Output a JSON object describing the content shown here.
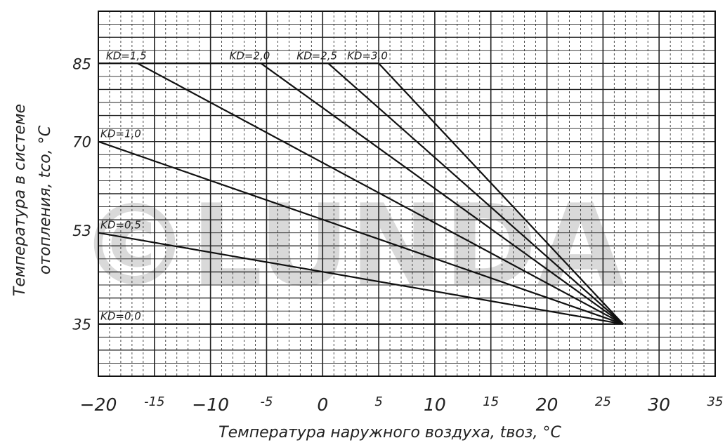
{
  "chart_data": {
    "type": "line",
    "title": "",
    "xlabel": "Температура наружного воздуха, tвоз, °С",
    "ylabel_line1": "Температура в системе",
    "ylabel_line2": "отопления, tсо, °С",
    "xlim": [
      -20,
      35
    ],
    "ylim": [
      25,
      95
    ],
    "x_ticks_major": [
      "−20",
      "−10",
      "0",
      "10",
      "20",
      "30"
    ],
    "x_ticks_minor": [
      "-15",
      "-5",
      "5",
      "15",
      "25",
      "35"
    ],
    "y_ticks": [
      "35",
      "53",
      "70",
      "85"
    ],
    "y_tick_values": [
      35,
      53,
      70,
      85
    ],
    "grid": true,
    "convergence_point": [
      26.8,
      35
    ],
    "series": [
      {
        "name": "KD=0,0",
        "label_y": 35,
        "x": [
          -20,
          26.8
        ],
        "y": [
          35,
          35
        ]
      },
      {
        "name": "KD=0,5",
        "label_y": 53,
        "x": [
          -20,
          26.8
        ],
        "y": [
          52.5,
          35
        ]
      },
      {
        "name": "KD=1,0",
        "label_y": 70,
        "x": [
          -20,
          26.8
        ],
        "y": [
          70,
          35
        ]
      },
      {
        "name": "KD=1,5",
        "label_y": 85,
        "x": [
          -16.5,
          26.8
        ],
        "y": [
          85,
          35
        ]
      },
      {
        "name": "KD=2,0",
        "label_y": 85,
        "x": [
          -5.5,
          26.8
        ],
        "y": [
          85,
          35
        ]
      },
      {
        "name": "KD=2,5",
        "label_y": 85,
        "x": [
          0.5,
          26.8
        ],
        "y": [
          85,
          35
        ]
      },
      {
        "name": "KD=3,0",
        "label_y": 85,
        "x": [
          5,
          26.8
        ],
        "y": [
          85,
          35
        ]
      }
    ],
    "plateau_85": {
      "x": [
        -20,
        5
      ],
      "y": 85
    }
  },
  "watermark": "©LUNDA"
}
